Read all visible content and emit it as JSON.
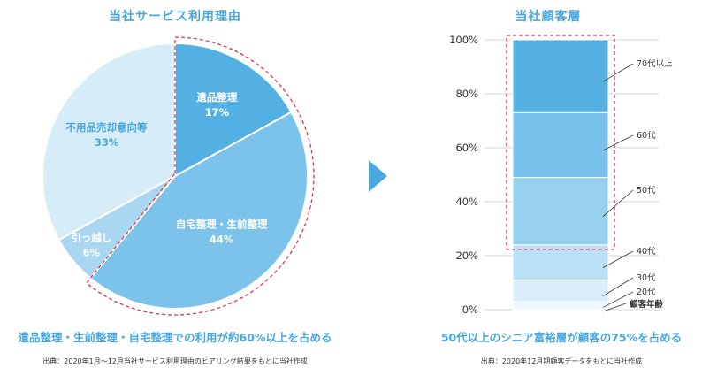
{
  "colors": {
    "accent": "#4aa8de",
    "pie_1": "#52b0e3",
    "pie_2": "#7cc3eb",
    "pie_3": "#a9d7f2",
    "pie_4": "#d6ecf9",
    "dash": "#e0344a",
    "text_dark": "#333333",
    "white": "#ffffff"
  },
  "chart_data": [
    {
      "type": "pie",
      "title": "当社サービス利用理由",
      "slices": [
        {
          "label": "遺品整理",
          "value": 17,
          "value_label": "17%"
        },
        {
          "label": "自宅整理・生前整理",
          "value": 44,
          "value_label": "44%"
        },
        {
          "label": "引っ越し",
          "value": 6,
          "value_label": "6%"
        },
        {
          "label": "不用品売却意向等",
          "value": 33,
          "value_label": "33%"
        }
      ],
      "headline": "遺品整理・生前整理・自宅整理での利用が約60%以上を占める",
      "source": "出典：2020年1月〜12月当社サービス利用理由のヒアリング結果をもとに当社作成"
    },
    {
      "type": "bar",
      "stacked": true,
      "title": "当社顧客層",
      "ylim": [
        0,
        100
      ],
      "yticks": [
        "0%",
        "20%",
        "40%",
        "60%",
        "80%",
        "100%"
      ],
      "ytick_values": [
        0,
        20,
        40,
        60,
        80,
        100
      ],
      "xlabel": "顧客年齢",
      "series": [
        {
          "name": "20代",
          "value": 3,
          "color": "#eef7fd"
        },
        {
          "name": "30代",
          "value": 8,
          "color": "#d9eefa"
        },
        {
          "name": "40代",
          "value": 13,
          "color": "#b9e0f5"
        },
        {
          "name": "50代",
          "value": 25,
          "color": "#97d0ef"
        },
        {
          "name": "60代",
          "value": 24,
          "color": "#78c1ea"
        },
        {
          "name": "70代以上",
          "value": 27,
          "color": "#55b0e2"
        }
      ],
      "headline": "50代以上のシニア富裕層が顧客の75%を占める",
      "source": "出典：2020年12月期顧客データをもとに当社作成"
    }
  ]
}
